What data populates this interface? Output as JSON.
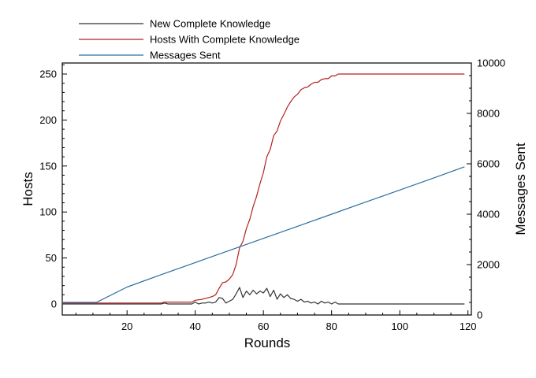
{
  "chart_data": {
    "type": "line",
    "xlabel": "Rounds",
    "ylabel_left": "Hosts",
    "ylabel_right": "Messages Sent",
    "xlim": [
      1,
      121
    ],
    "ylim_left": [
      -12,
      262
    ],
    "ylim_right": [
      0,
      10000
    ],
    "x_ticks": [
      20,
      40,
      60,
      80,
      100,
      120
    ],
    "y_ticks_left": [
      0,
      50,
      100,
      150,
      200,
      250
    ],
    "y_ticks_right": [
      0,
      2000,
      4000,
      6000,
      8000,
      10000
    ],
    "legend_position": "top-left, above plot",
    "series": [
      {
        "name": "New Complete Knowledge",
        "color": "#333333",
        "axis": "left",
        "x": [
          1,
          10,
          20,
          30,
          31,
          32,
          38,
          39,
          40,
          41,
          42,
          43,
          44,
          45,
          46,
          47,
          48,
          49,
          50,
          51,
          52,
          53,
          54,
          55,
          56,
          57,
          58,
          59,
          60,
          61,
          62,
          63,
          64,
          65,
          66,
          67,
          68,
          69,
          70,
          71,
          72,
          73,
          74,
          75,
          76,
          77,
          78,
          79,
          80,
          81,
          82,
          83,
          84,
          90,
          100,
          110,
          119
        ],
        "values": [
          0,
          0,
          0,
          0,
          1,
          0,
          0,
          0,
          2,
          0,
          1,
          1,
          2,
          1,
          2,
          7,
          6,
          1,
          3,
          5,
          11,
          18,
          7,
          14,
          10,
          15,
          11,
          14,
          12,
          17,
          8,
          15,
          5,
          11,
          7,
          10,
          6,
          5,
          3,
          5,
          2,
          3,
          1,
          2,
          0,
          3,
          1,
          2,
          0,
          2,
          0,
          0,
          0,
          0,
          0,
          0,
          0
        ]
      },
      {
        "name": "Hosts With Complete Knowledge",
        "color": "#b22222",
        "axis": "left",
        "x": [
          1,
          10,
          20,
          30,
          31,
          32,
          38,
          39,
          40,
          42,
          44,
          45,
          46,
          47,
          48,
          49,
          50,
          51,
          52,
          53,
          54,
          55,
          56,
          57,
          58,
          59,
          60,
          61,
          62,
          63,
          64,
          65,
          66,
          67,
          68,
          69,
          70,
          71,
          72,
          73,
          74,
          75,
          76,
          77,
          78,
          79,
          80,
          81,
          82,
          83,
          84,
          90,
          100,
          110,
          119
        ],
        "values": [
          1,
          1,
          1,
          1,
          2,
          2,
          2,
          2,
          4,
          5,
          7,
          8,
          10,
          17,
          23,
          24,
          27,
          32,
          43,
          61,
          68,
          82,
          92,
          106,
          117,
          131,
          143,
          160,
          168,
          183,
          188,
          199,
          206,
          214,
          220,
          225,
          228,
          233,
          235,
          236,
          239,
          241,
          241,
          244,
          245,
          245,
          248,
          248,
          250,
          250,
          250,
          250,
          250,
          250,
          250
        ]
      },
      {
        "name": "Messages Sent",
        "color": "#2b6e9e",
        "axis": "right",
        "x": [
          1,
          11,
          20,
          30,
          40,
          50,
          60,
          70,
          80,
          90,
          100,
          110,
          119
        ],
        "values": [
          500,
          500,
          1110,
          1600,
          2080,
          2560,
          3040,
          3520,
          4000,
          4480,
          4960,
          5440,
          5880
        ]
      }
    ]
  }
}
